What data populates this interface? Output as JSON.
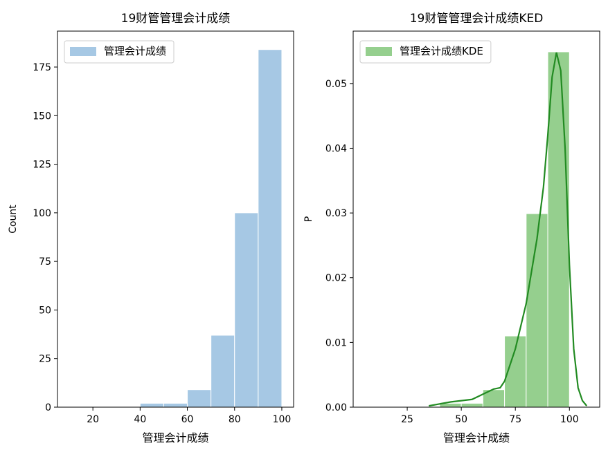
{
  "chart_data": [
    {
      "type": "histogram",
      "title": "19财管管理会计成绩",
      "name": "管理会计成绩",
      "xlabel": "管理会计成绩",
      "ylabel": "Count",
      "bins": [
        10,
        20,
        30,
        40,
        50,
        60,
        70,
        80,
        90,
        100
      ],
      "values": [
        0,
        0,
        0,
        2,
        2,
        9,
        37,
        100,
        184
      ],
      "color": "#a6c8e4",
      "xlim": [
        5,
        105
      ],
      "ylim": [
        0,
        193.5
      ],
      "xticks": [
        20,
        40,
        60,
        80,
        100
      ],
      "yticks": [
        0,
        25,
        50,
        75,
        100,
        125,
        150,
        175
      ],
      "legend": "upper left"
    },
    {
      "type": "histogram",
      "title": "19财管管理会计成绩KED",
      "name": "管理会计成绩KDE",
      "xlabel": "管理会计成绩",
      "ylabel": "P",
      "bins": [
        10,
        20,
        30,
        40,
        50,
        60,
        70,
        80,
        90,
        100
      ],
      "values": [
        0,
        0,
        0,
        0.0006,
        0.0006,
        0.0027,
        0.011,
        0.0299,
        0.0549
      ],
      "color": "#95cf8e",
      "xlim": [
        0,
        114
      ],
      "ylim": [
        0,
        0.0581
      ],
      "xticks": [
        25,
        50,
        75,
        100
      ],
      "yticks": [
        {
          "value": 0,
          "label": "0.00"
        },
        {
          "value": 0.01,
          "label": "0.01"
        },
        {
          "value": 0.02,
          "label": "0.02"
        },
        {
          "value": 0.03,
          "label": "0.03"
        },
        {
          "value": 0.04,
          "label": "0.04"
        },
        {
          "value": 0.05,
          "label": "0.05"
        }
      ],
      "legend": "upper left",
      "kde": {
        "color": "#228b22",
        "x": [
          35,
          40,
          45,
          50,
          55,
          60,
          65,
          68,
          70,
          75,
          80,
          85,
          88,
          90,
          92,
          94,
          96,
          98,
          100,
          102,
          104,
          106,
          108
        ],
        "values": [
          0.0002,
          0.0005,
          0.0008,
          0.001,
          0.0012,
          0.002,
          0.0028,
          0.003,
          0.004,
          0.009,
          0.016,
          0.026,
          0.034,
          0.042,
          0.051,
          0.0548,
          0.052,
          0.04,
          0.022,
          0.009,
          0.003,
          0.001,
          0.0002
        ]
      }
    }
  ]
}
